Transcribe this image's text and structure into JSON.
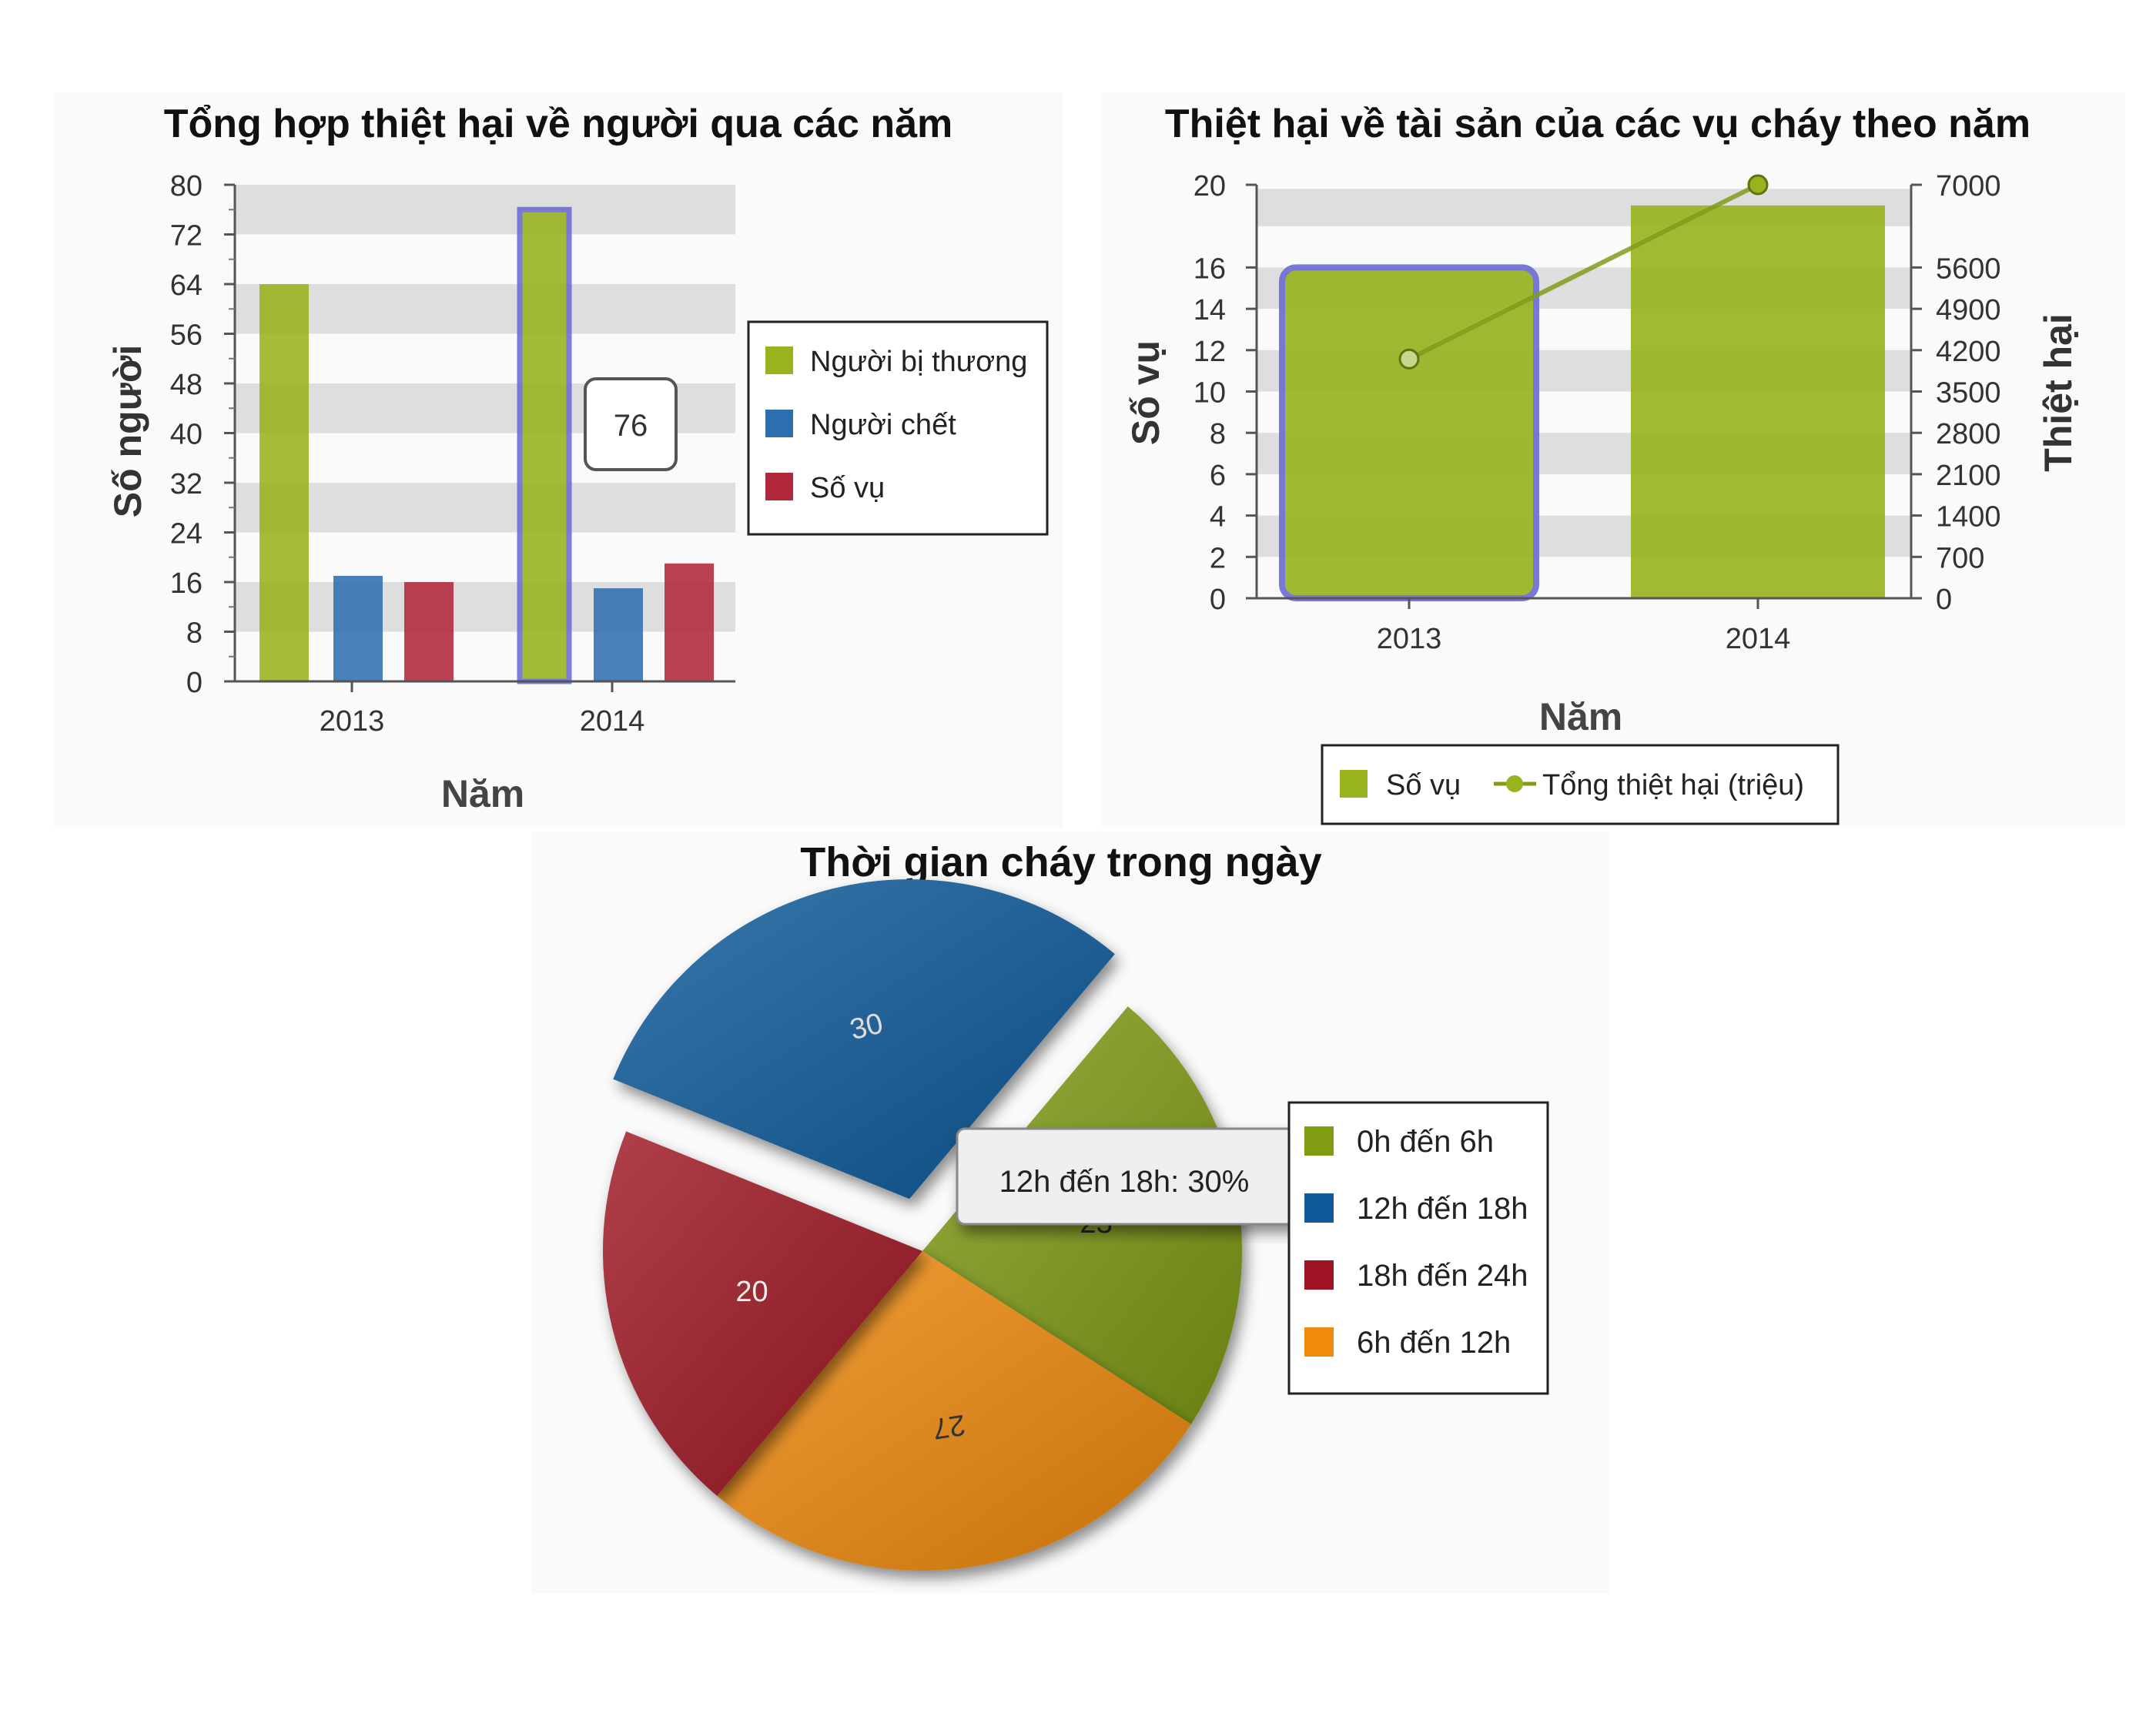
{
  "chart_data": [
    {
      "type": "bar",
      "title": "Tổng hợp thiệt hại về người qua các năm",
      "xlabel": "Năm",
      "ylabel": "Số người",
      "categories": [
        "2013",
        "2014"
      ],
      "series": [
        {
          "name": "Người bị thương",
          "values": [
            64,
            76
          ],
          "color": "#97b31e"
        },
        {
          "name": "Người chết",
          "values": [
            17,
            15
          ],
          "color": "#2d6fae"
        },
        {
          "name": "Số vụ",
          "values": [
            16,
            19
          ],
          "color": "#b0283a"
        }
      ],
      "ylim": [
        0,
        80
      ],
      "yticks": [
        "0",
        "8",
        "16",
        "24",
        "32",
        "40",
        "48",
        "56",
        "64",
        "72",
        "80"
      ],
      "tooltip": "76",
      "grid": "alternating-bands",
      "legend": "right"
    },
    {
      "type": "bar",
      "title": "Thiệt hại về tài sản của các vụ cháy theo năm",
      "xlabel": "Năm",
      "ylabel": "Số vụ",
      "y2label": "Thiệt hại",
      "categories": [
        "2013",
        "2014"
      ],
      "series": [
        {
          "name": "Số vụ",
          "type": "bar",
          "values": [
            16,
            19
          ],
          "color": "#97b31e"
        },
        {
          "name": "Tổng thiệt hại (triệu)",
          "type": "line",
          "axis": "right",
          "values": [
            4050,
            7000
          ],
          "color": "#7f9c1a"
        }
      ],
      "ylim": [
        0,
        20
      ],
      "y2lim": [
        0,
        7000
      ],
      "yticks": [
        "0",
        "2",
        "4",
        "6",
        "8",
        "10",
        "12",
        "14",
        "16",
        "20"
      ],
      "y2ticks": [
        "0",
        "700",
        "1400",
        "2100",
        "2800",
        "3500",
        "4200",
        "4900",
        "5600",
        "7000"
      ],
      "grid": "alternating-bands",
      "legend": "bottom"
    },
    {
      "type": "pie",
      "title": "Thời gian cháy trong ngày",
      "slices": [
        {
          "label": "0h đến 6h",
          "value": 23,
          "color": "#7f9c12"
        },
        {
          "label": "6h đến 12h",
          "value": 27,
          "color": "#f08a0c"
        },
        {
          "label": "18h đến 24h",
          "value": 20,
          "color": "#9e1424"
        },
        {
          "label": "12h đến 18h",
          "value": 30,
          "color": "#115a9a",
          "exploded": true
        }
      ],
      "legend_order": [
        "0h đến 6h",
        "12h đến 18h",
        "18h đến 24h",
        "6h đến 12h"
      ],
      "tooltip": "12h đến 18h: 30%",
      "legend": "right"
    }
  ]
}
